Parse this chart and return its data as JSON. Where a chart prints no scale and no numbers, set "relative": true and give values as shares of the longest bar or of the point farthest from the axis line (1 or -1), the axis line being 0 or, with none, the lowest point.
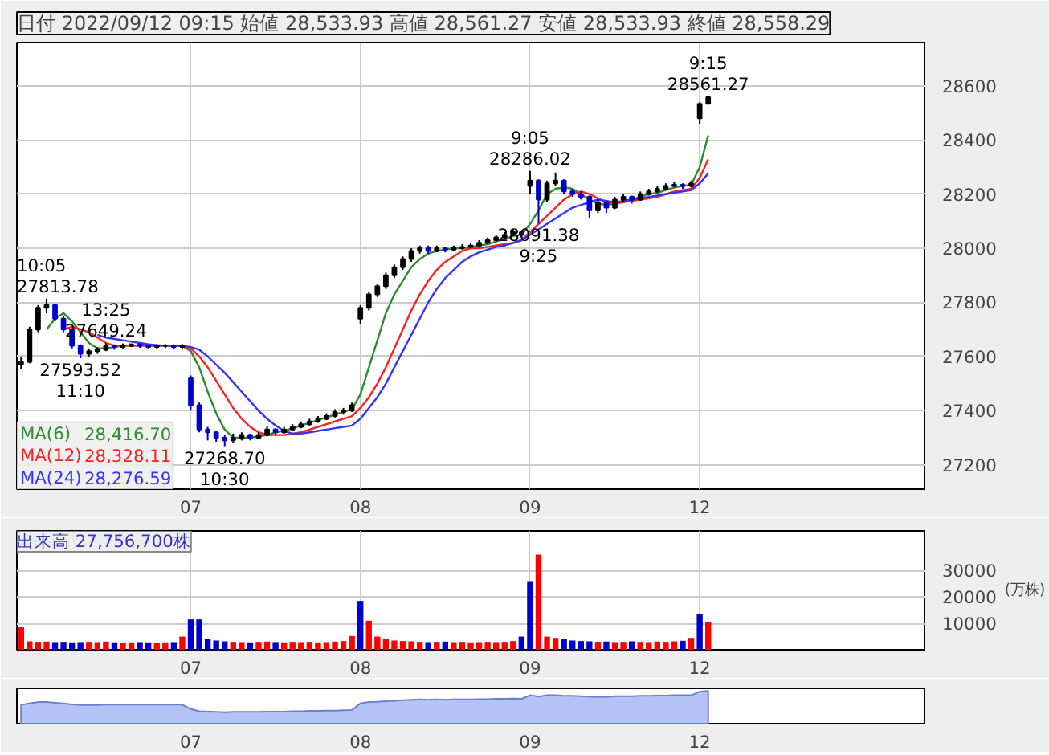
{
  "chart_data": [
    {
      "type": "candlestick",
      "title": "日付 2022/09/12 09:15 始値 28,533.93 高値 28,561.27 安値 28,533.93 終値 28,558.29",
      "categories": [
        null,
        null,
        null,
        null,
        null,
        null,
        null,
        null,
        null,
        null,
        null,
        null,
        null,
        null,
        null,
        null,
        null,
        null,
        null,
        null,
        "07",
        null,
        null,
        null,
        null,
        null,
        null,
        null,
        null,
        null,
        null,
        null,
        null,
        null,
        null,
        null,
        null,
        null,
        null,
        null,
        "08",
        null,
        null,
        null,
        null,
        null,
        null,
        null,
        null,
        null,
        null,
        null,
        null,
        null,
        null,
        null,
        null,
        null,
        null,
        null,
        "09",
        null,
        null,
        null,
        null,
        null,
        null,
        null,
        null,
        null,
        null,
        null,
        null,
        null,
        null,
        null,
        null,
        null,
        null,
        null,
        "12",
        null,
        null,
        null,
        null,
        null,
        null,
        null,
        null,
        null,
        null,
        null,
        null,
        null,
        null,
        null,
        null,
        null,
        null,
        null,
        null,
        null,
        null,
        null,
        null,
        null,
        null
      ],
      "ohlc": [
        [
          27570,
          27600,
          27555,
          27580
        ],
        [
          27580,
          27710,
          27575,
          27700
        ],
        [
          27700,
          27790,
          27690,
          27780
        ],
        [
          27780,
          27813.78,
          27760,
          27790
        ],
        [
          27790,
          27795,
          27730,
          27740
        ],
        [
          27740,
          27750,
          27690,
          27700
        ],
        [
          27700,
          27705,
          27630,
          27640
        ],
        [
          27640,
          27645,
          27593.52,
          27610
        ],
        [
          27610,
          27630,
          27600,
          27620
        ],
        [
          27620,
          27635,
          27610,
          27625
        ],
        [
          27625,
          27649.24,
          27620,
          27640
        ],
        [
          27640,
          27645,
          27625,
          27635
        ],
        [
          27635,
          27648,
          27630,
          27640
        ],
        [
          27640,
          27648,
          27635,
          27645
        ],
        [
          27645,
          27648,
          27632,
          27640
        ],
        [
          27640,
          27645,
          27628,
          27635
        ],
        [
          27635,
          27645,
          27630,
          27640
        ],
        [
          27640,
          27646,
          27632,
          27640
        ],
        [
          27640,
          27645,
          27628,
          27635
        ],
        [
          27635,
          27646,
          27630,
          27640
        ],
        [
          27520,
          27530,
          27400,
          27420
        ],
        [
          27420,
          27430,
          27320,
          27330
        ],
        [
          27330,
          27340,
          27290,
          27320
        ],
        [
          27320,
          27325,
          27285,
          27300
        ],
        [
          27300,
          27310,
          27268.7,
          27290
        ],
        [
          27290,
          27315,
          27280,
          27300
        ],
        [
          27300,
          27320,
          27290,
          27310
        ],
        [
          27310,
          27315,
          27290,
          27300
        ],
        [
          27300,
          27320,
          27295,
          27310
        ],
        [
          27310,
          27345,
          27305,
          27330
        ],
        [
          27330,
          27335,
          27310,
          27320
        ],
        [
          27320,
          27340,
          27315,
          27330
        ],
        [
          27330,
          27350,
          27325,
          27340
        ],
        [
          27340,
          27360,
          27335,
          27350
        ],
        [
          27350,
          27370,
          27345,
          27360
        ],
        [
          27360,
          27380,
          27355,
          27370
        ],
        [
          27370,
          27390,
          27365,
          27380
        ],
        [
          27380,
          27405,
          27375,
          27395
        ],
        [
          27395,
          27410,
          27385,
          27400
        ],
        [
          27400,
          27430,
          27395,
          27420
        ],
        [
          27740,
          27790,
          27720,
          27780
        ],
        [
          27780,
          27840,
          27770,
          27830
        ],
        [
          27830,
          27870,
          27820,
          27860
        ],
        [
          27860,
          27910,
          27850,
          27900
        ],
        [
          27900,
          27940,
          27890,
          27930
        ],
        [
          27930,
          27970,
          27920,
          27960
        ],
        [
          27960,
          28000,
          27950,
          27990
        ],
        [
          27990,
          28010,
          27980,
          28000
        ],
        [
          28000,
          28010,
          27980,
          27990
        ],
        [
          27990,
          28010,
          27985,
          28000
        ],
        [
          28000,
          28005,
          27985,
          27995
        ],
        [
          27995,
          28010,
          27990,
          28000
        ],
        [
          28000,
          28015,
          27995,
          28005
        ],
        [
          28005,
          28020,
          28000,
          28010
        ],
        [
          28010,
          28030,
          28005,
          28020
        ],
        [
          28020,
          28040,
          28015,
          28030
        ],
        [
          28030,
          28050,
          28025,
          28040
        ],
        [
          28040,
          28060,
          28035,
          28050
        ],
        [
          28050,
          28070,
          28045,
          28060
        ],
        [
          28060,
          28065,
          28040,
          28050
        ],
        [
          28230,
          28286.02,
          28200,
          28250
        ],
        [
          28250,
          28255,
          28091.38,
          28180
        ],
        [
          28180,
          28250,
          28170,
          28240
        ],
        [
          28240,
          28280,
          28230,
          28250
        ],
        [
          28250,
          28255,
          28200,
          28210
        ],
        [
          28210,
          28220,
          28190,
          28200
        ],
        [
          28200,
          28210,
          28180,
          28190
        ],
        [
          28190,
          28195,
          28110,
          28140
        ],
        [
          28140,
          28180,
          28130,
          28170
        ],
        [
          28170,
          28175,
          28130,
          28150
        ],
        [
          28150,
          28190,
          28145,
          28180
        ],
        [
          28180,
          28200,
          28170,
          28190
        ],
        [
          28190,
          28195,
          28165,
          28180
        ],
        [
          28180,
          28210,
          28175,
          28200
        ],
        [
          28200,
          28220,
          28195,
          28210
        ],
        [
          28210,
          28230,
          28205,
          28220
        ],
        [
          28220,
          28240,
          28215,
          28230
        ],
        [
          28230,
          28245,
          28225,
          28235
        ],
        [
          28235,
          28240,
          28220,
          28230
        ],
        [
          28230,
          28250,
          28225,
          28240
        ],
        [
          28480,
          28540,
          28460,
          28533.93
        ],
        [
          28533.93,
          28561.27,
          28533.93,
          28558.29
        ],
        null,
        null,
        null,
        null,
        null,
        null,
        null,
        null,
        null,
        null,
        null,
        null,
        null,
        null,
        null,
        null,
        null,
        null,
        null,
        null,
        null,
        null,
        null,
        null,
        null
      ],
      "colors": [
        "#000000",
        "#000000",
        "#000000",
        "#000000",
        "#0000cc",
        "#0000cc",
        "#0000cc",
        "#0000cc",
        "#000000",
        "#000000",
        "#000000",
        "#0000cc",
        "#000000",
        "#000000",
        "#0000cc",
        "#0000cc",
        "#000000",
        "#000000",
        "#0000cc",
        "#000000",
        "#0000cc",
        "#0000cc",
        "#0000cc",
        "#0000cc",
        "#0000cc",
        "#000000",
        "#000000",
        "#0000cc",
        "#000000",
        "#000000",
        "#0000cc",
        "#000000",
        "#000000",
        "#000000",
        "#000000",
        "#000000",
        "#000000",
        "#000000",
        "#000000",
        "#000000",
        "#000000",
        "#000000",
        "#000000",
        "#000000",
        "#000000",
        "#000000",
        "#000000",
        "#000000",
        "#0000cc",
        "#000000",
        "#0000cc",
        "#000000",
        "#000000",
        "#000000",
        "#000000",
        "#000000",
        "#000000",
        "#000000",
        "#000000",
        "#0000cc",
        "#000000",
        "#0000cc",
        "#000000",
        "#000000",
        "#0000cc",
        "#0000cc",
        "#0000cc",
        "#0000cc",
        "#000000",
        "#0000cc",
        "#000000",
        "#000000",
        "#0000cc",
        "#000000",
        "#000000",
        "#000000",
        "#000000",
        "#000000",
        "#0000cc",
        "#000000",
        "#000000",
        "#000000",
        null,
        null,
        null,
        null,
        null,
        null,
        null,
        null,
        null,
        null,
        null,
        null,
        null,
        null,
        null,
        null,
        null,
        null,
        null,
        null,
        null,
        null,
        null,
        null,
        null
      ],
      "series": [
        {
          "name": "MA(6)",
          "type": "line",
          "color": "#2e8b2e",
          "values": [
            null,
            null,
            null,
            27700,
            27740,
            27760,
            27730,
            27690,
            27650,
            27630,
            27630,
            27635,
            27640,
            27640,
            27640,
            27640,
            27640,
            27640,
            27640,
            27640,
            27620,
            27560,
            27470,
            27390,
            27330,
            27300,
            27300,
            27300,
            27305,
            27310,
            27320,
            27325,
            27335,
            27345,
            27355,
            27365,
            27375,
            27385,
            27395,
            27405,
            27460,
            27560,
            27660,
            27760,
            27830,
            27880,
            27930,
            27960,
            27980,
            27990,
            27995,
            28000,
            28000,
            28005,
            28010,
            28015,
            28025,
            28035,
            28045,
            28050,
            28090,
            28140,
            28200,
            28220,
            28225,
            28220,
            28200,
            28180,
            28165,
            28160,
            28165,
            28175,
            28180,
            28190,
            28200,
            28205,
            28215,
            28225,
            28230,
            28235,
            28300,
            28416.7,
            null,
            null,
            null,
            null,
            null,
            null,
            null,
            null,
            null,
            null,
            null,
            null,
            null,
            null,
            null,
            null,
            null,
            null,
            null,
            null,
            null,
            null,
            null,
            null,
            null
          ]
        },
        {
          "name": "MA(12)",
          "type": "line",
          "color": "#ff2020",
          "values": [
            null,
            null,
            null,
            null,
            null,
            27700,
            27710,
            27700,
            27690,
            27670,
            27650,
            27640,
            27640,
            27640,
            27640,
            27640,
            27640,
            27640,
            27640,
            27640,
            27630,
            27600,
            27560,
            27510,
            27460,
            27410,
            27370,
            27340,
            27320,
            27310,
            27310,
            27310,
            27315,
            27320,
            27330,
            27340,
            27350,
            27360,
            27370,
            27380,
            27410,
            27450,
            27500,
            27560,
            27630,
            27700,
            27770,
            27830,
            27880,
            27920,
            27950,
            27970,
            27990,
            28000,
            28000,
            28005,
            28010,
            28015,
            28020,
            28030,
            28060,
            28090,
            28120,
            28150,
            28180,
            28200,
            28210,
            28200,
            28185,
            28170,
            28165,
            28170,
            28175,
            28180,
            28185,
            28190,
            28200,
            28210,
            28215,
            28220,
            28260,
            28328.11,
            null,
            null,
            null,
            null,
            null,
            null,
            null,
            null,
            null,
            null,
            null,
            null,
            null,
            null,
            null,
            null,
            null,
            null,
            null,
            null,
            null,
            null,
            null,
            null,
            null
          ]
        },
        {
          "name": "MA(24)",
          "type": "line",
          "color": "#3333ff",
          "values": [
            null,
            null,
            null,
            null,
            null,
            null,
            null,
            null,
            null,
            27680,
            27670,
            27665,
            27660,
            27655,
            27650,
            27645,
            27642,
            27640,
            27640,
            27640,
            27635,
            27625,
            27600,
            27570,
            27540,
            27505,
            27470,
            27435,
            27400,
            27370,
            27345,
            27325,
            27315,
            27315,
            27320,
            27325,
            27330,
            27335,
            27340,
            27345,
            27370,
            27410,
            27450,
            27500,
            27560,
            27620,
            27680,
            27740,
            27800,
            27850,
            27890,
            27920,
            27950,
            27970,
            27985,
            27995,
            28005,
            28010,
            28020,
            28030,
            28050,
            28070,
            28090,
            28110,
            28130,
            28150,
            28160,
            28170,
            28180,
            28175,
            28170,
            28175,
            28180,
            28185,
            28190,
            28195,
            28200,
            28205,
            28210,
            28215,
            28240,
            28276.59,
            null,
            null,
            null,
            null,
            null,
            null,
            null,
            null,
            null,
            null,
            null,
            null,
            null,
            null,
            null,
            null,
            null,
            null,
            null,
            null,
            null,
            null,
            null,
            null,
            null
          ]
        }
      ],
      "ylim": [
        27110,
        28760
      ],
      "yticks": [
        27200,
        27400,
        27600,
        27800,
        28000,
        28200,
        28400,
        28600
      ],
      "grid": true,
      "legend": "bottom left",
      "annotations": [
        {
          "text": "10:05\n27813.78",
          "y": 27813.78
        },
        {
          "text": "27593.52\n11:10",
          "y": 27593.52
        },
        {
          "text": "13:25\n27649.24",
          "y": 27649.24
        },
        {
          "text": "27268.70\n10:30",
          "y": 27268.7
        },
        {
          "text": "9:05\n28286.02",
          "y": 28286.02
        },
        {
          "text": "28091.38\n9:25",
          "y": 28091.38
        },
        {
          "text": "9:15\n28561.27",
          "y": 28561.27
        },
        "28,416.70",
        "28,328.11",
        "28,276.59"
      ]
    },
    {
      "type": "bar",
      "title": "出来高 27,756,700株",
      "ylabel": "(万株)",
      "categories": [
        null,
        null,
        null,
        null,
        null,
        null,
        null,
        null,
        null,
        null,
        null,
        null,
        null,
        null,
        null,
        null,
        null,
        null,
        null,
        null,
        "07",
        null,
        null,
        null,
        null,
        null,
        null,
        null,
        null,
        null,
        null,
        null,
        null,
        null,
        null,
        null,
        null,
        null,
        null,
        null,
        "08",
        null,
        null,
        null,
        null,
        null,
        null,
        null,
        null,
        null,
        null,
        null,
        null,
        null,
        null,
        null,
        null,
        null,
        null,
        null,
        "09",
        null,
        null,
        null,
        null,
        null,
        null,
        null,
        null,
        null,
        null,
        null,
        null,
        null,
        null,
        null,
        null,
        null,
        null,
        null,
        "12",
        null,
        null,
        null,
        null,
        null,
        null,
        null,
        null,
        null,
        null,
        null,
        null,
        null,
        null,
        null,
        null,
        null,
        null,
        null,
        null,
        null,
        null,
        null,
        null,
        null,
        null
      ],
      "values": [
        8500,
        3200,
        3000,
        3100,
        2900,
        3000,
        2800,
        2900,
        3000,
        2900,
        3100,
        2800,
        2700,
        2800,
        2900,
        2800,
        2700,
        2800,
        2900,
        5000,
        11500,
        11500,
        4000,
        3500,
        3200,
        3000,
        2900,
        2800,
        3000,
        3100,
        2900,
        2800,
        3000,
        2900,
        3000,
        2800,
        2900,
        3100,
        3300,
        5200,
        18500,
        11000,
        5000,
        4200,
        3500,
        3300,
        3200,
        3000,
        2900,
        3000,
        3100,
        2900,
        3000,
        2800,
        2900,
        3000,
        2900,
        3000,
        3300,
        5000,
        26000,
        36000,
        5000,
        4500,
        4000,
        3500,
        3300,
        3200,
        3000,
        3100,
        2900,
        3000,
        3200,
        3000,
        2900,
        3100,
        3000,
        3200,
        3400,
        4500,
        13500,
        10500,
        null,
        null,
        null,
        null,
        null,
        null,
        null,
        null,
        null,
        null,
        null,
        null,
        null,
        null,
        null,
        null,
        null,
        null,
        null,
        null,
        null,
        null,
        null,
        null,
        null
      ],
      "colors": [
        "#ff0000",
        "#ff0000",
        "#ff0000",
        "#ff0000",
        "#0000cc",
        "#0000cc",
        "#0000cc",
        "#0000cc",
        "#ff0000",
        "#ff0000",
        "#ff0000",
        "#0000cc",
        "#ff0000",
        "#ff0000",
        "#0000cc",
        "#0000cc",
        "#ff0000",
        "#ff0000",
        "#0000cc",
        "#ff0000",
        "#0000cc",
        "#0000cc",
        "#0000cc",
        "#0000cc",
        "#0000cc",
        "#ff0000",
        "#ff0000",
        "#0000cc",
        "#ff0000",
        "#ff0000",
        "#0000cc",
        "#ff0000",
        "#ff0000",
        "#ff0000",
        "#ff0000",
        "#ff0000",
        "#ff0000",
        "#ff0000",
        "#ff0000",
        "#ff0000",
        "#0000cc",
        "#ff0000",
        "#ff0000",
        "#ff0000",
        "#ff0000",
        "#ff0000",
        "#ff0000",
        "#ff0000",
        "#0000cc",
        "#ff0000",
        "#0000cc",
        "#ff0000",
        "#ff0000",
        "#ff0000",
        "#ff0000",
        "#ff0000",
        "#ff0000",
        "#ff0000",
        "#ff0000",
        "#0000cc",
        "#0000cc",
        "#ff0000",
        "#ff0000",
        "#ff0000",
        "#0000cc",
        "#0000cc",
        "#0000cc",
        "#0000cc",
        "#ff0000",
        "#0000cc",
        "#ff0000",
        "#ff0000",
        "#0000cc",
        "#ff0000",
        "#ff0000",
        "#ff0000",
        "#ff0000",
        "#ff0000",
        "#0000cc",
        "#ff0000",
        "#0000cc",
        "#ff0000",
        null,
        null,
        null,
        null,
        null,
        null,
        null,
        null,
        null,
        null,
        null,
        null,
        null,
        null,
        null,
        null,
        null,
        null,
        null,
        null,
        null,
        null,
        null,
        null,
        null
      ],
      "ylim": [
        0,
        45000
      ],
      "yticks": [
        10000,
        20000,
        30000
      ],
      "grid": true
    },
    {
      "type": "area",
      "relative": true,
      "color": "#b4c3f5",
      "categories": [
        null,
        null,
        null,
        null,
        null,
        null,
        null,
        null,
        null,
        null,
        null,
        null,
        null,
        null,
        null,
        null,
        null,
        null,
        null,
        null,
        "07",
        null,
        null,
        null,
        null,
        null,
        null,
        null,
        null,
        null,
        null,
        null,
        null,
        null,
        null,
        null,
        null,
        null,
        null,
        null,
        "08",
        null,
        null,
        null,
        null,
        null,
        null,
        null,
        null,
        null,
        null,
        null,
        null,
        null,
        null,
        null,
        null,
        null,
        null,
        null,
        "09",
        null,
        null,
        null,
        null,
        null,
        null,
        null,
        null,
        null,
        null,
        null,
        null,
        null,
        null,
        null,
        null,
        null,
        null,
        null,
        "12",
        null,
        null,
        null,
        null,
        null,
        null,
        null,
        null,
        null,
        null,
        null,
        null,
        null,
        null,
        null,
        null,
        null,
        null,
        null,
        null,
        null,
        null,
        null,
        null,
        null,
        null
      ],
      "values": [
        0.58,
        0.62,
        0.66,
        0.66,
        0.64,
        0.62,
        0.59,
        0.57,
        0.57,
        0.57,
        0.58,
        0.58,
        0.58,
        0.58,
        0.58,
        0.58,
        0.58,
        0.58,
        0.58,
        0.58,
        0.45,
        0.38,
        0.37,
        0.36,
        0.35,
        0.36,
        0.36,
        0.36,
        0.36,
        0.37,
        0.37,
        0.37,
        0.38,
        0.38,
        0.39,
        0.39,
        0.4,
        0.4,
        0.41,
        0.42,
        0.62,
        0.66,
        0.67,
        0.69,
        0.7,
        0.72,
        0.73,
        0.74,
        0.73,
        0.74,
        0.73,
        0.74,
        0.74,
        0.74,
        0.75,
        0.75,
        0.76,
        0.76,
        0.77,
        0.76,
        0.87,
        0.83,
        0.87,
        0.87,
        0.85,
        0.85,
        0.84,
        0.82,
        0.83,
        0.82,
        0.84,
        0.84,
        0.84,
        0.85,
        0.85,
        0.86,
        0.86,
        0.87,
        0.87,
        0.87,
        0.98,
        1.0,
        null,
        null,
        null,
        null,
        null,
        null,
        null,
        null,
        null,
        null,
        null,
        null,
        null,
        null,
        null,
        null,
        null,
        null,
        null,
        null,
        null,
        null,
        null,
        null,
        null
      ]
    }
  ]
}
